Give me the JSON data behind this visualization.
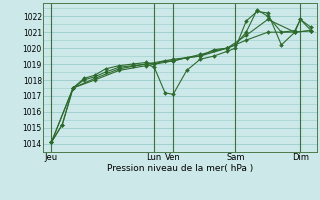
{
  "background_color": "#cce8e8",
  "grid_color": "#99cccc",
  "line_color": "#2d6a2d",
  "marker_color": "#2d6a2d",
  "xlabel": "Pression niveau de la mer( hPa )",
  "ylim": [
    1013.5,
    1022.8
  ],
  "yticks": [
    1014,
    1015,
    1016,
    1017,
    1018,
    1019,
    1020,
    1021,
    1022
  ],
  "x_day_labels": [
    {
      "label": "Jeu",
      "x": 0.0
    },
    {
      "label": "Lun",
      "x": 3.8
    },
    {
      "label": "Ven",
      "x": 4.5
    },
    {
      "label": "Sam",
      "x": 6.8
    },
    {
      "label": "Dim",
      "x": 9.2
    }
  ],
  "x_day_lines": [
    0.0,
    3.8,
    4.5,
    6.8,
    9.2
  ],
  "xlim": [
    -0.3,
    9.8
  ],
  "series": [
    {
      "x": [
        0.0,
        0.4,
        0.8,
        1.2,
        1.6,
        2.0,
        2.5,
        3.0,
        3.5,
        3.8,
        4.2,
        4.5,
        5.0,
        5.5,
        6.0,
        6.5,
        6.8,
        7.2,
        7.6,
        8.0,
        8.5,
        9.0,
        9.2,
        9.6
      ],
      "y": [
        1014.1,
        1015.2,
        1017.5,
        1018.0,
        1018.2,
        1018.5,
        1018.8,
        1018.9,
        1019.0,
        1018.8,
        1017.2,
        1017.1,
        1018.6,
        1019.3,
        1019.5,
        1019.8,
        1020.0,
        1021.7,
        1022.3,
        1022.2,
        1020.2,
        1021.0,
        1021.8,
        1021.1
      ]
    },
    {
      "x": [
        0.0,
        0.4,
        0.8,
        1.2,
        1.6,
        2.0,
        2.5,
        3.0,
        3.5,
        3.8,
        4.2,
        4.5,
        5.0,
        5.5,
        6.0,
        6.5,
        6.8,
        7.2,
        7.6,
        8.0,
        8.5,
        9.0,
        9.2,
        9.6
      ],
      "y": [
        1014.1,
        1015.2,
        1017.5,
        1018.1,
        1018.3,
        1018.7,
        1018.9,
        1019.0,
        1019.1,
        1019.0,
        1019.2,
        1019.2,
        1019.4,
        1019.5,
        1019.9,
        1020.0,
        1020.2,
        1021.0,
        1022.4,
        1022.0,
        1021.0,
        1021.1,
        1021.8,
        1021.3
      ]
    },
    {
      "x": [
        0.0,
        0.8,
        1.6,
        2.5,
        3.5,
        4.5,
        5.5,
        6.5,
        7.2,
        8.0,
        9.0,
        9.6
      ],
      "y": [
        1014.1,
        1017.5,
        1018.1,
        1018.7,
        1019.0,
        1019.3,
        1019.5,
        1020.0,
        1020.8,
        1021.8,
        1021.0,
        1021.1
      ]
    },
    {
      "x": [
        0.0,
        0.8,
        1.6,
        2.5,
        3.5,
        4.5,
        5.5,
        6.5,
        7.2,
        8.0,
        9.0,
        9.6
      ],
      "y": [
        1014.1,
        1017.5,
        1018.0,
        1018.6,
        1018.9,
        1019.2,
        1019.6,
        1020.0,
        1020.5,
        1021.0,
        1021.0,
        1021.1
      ]
    }
  ]
}
